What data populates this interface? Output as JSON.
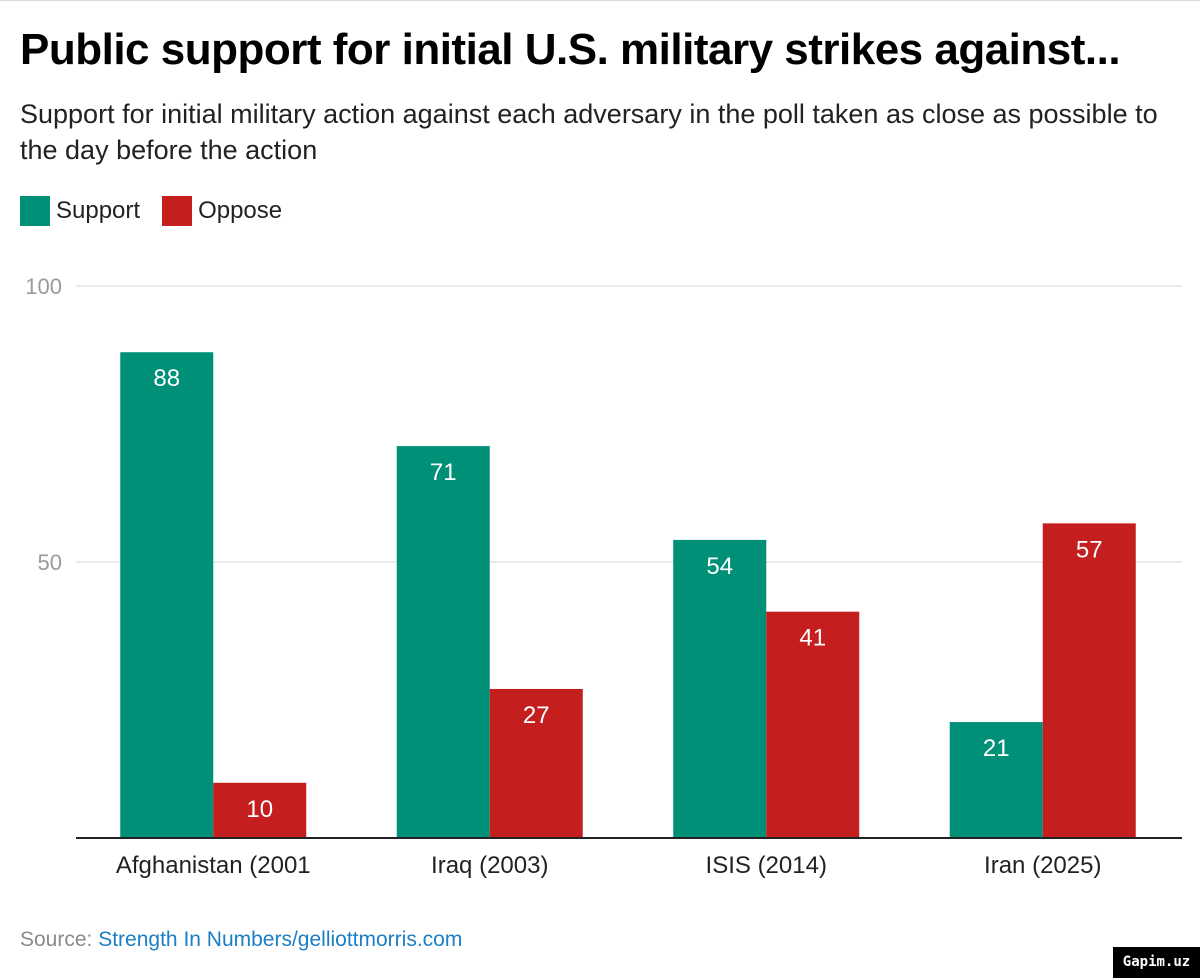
{
  "title": "Public support for initial U.S. military strikes against...",
  "subtitle": "Support for initial military action against each adversary in the poll taken as close as possible to the day before the action",
  "legend": {
    "support_label": "Support",
    "oppose_label": "Oppose"
  },
  "colors": {
    "support": "#008f77",
    "oppose": "#c41e1e",
    "grid": "#e3e3e3",
    "axis": "#222222",
    "tick_label": "#9a9a9a"
  },
  "source": {
    "prefix": "Source: ",
    "link_text": "Strength In Numbers/gelliottmorris.com"
  },
  "watermark": "Gapim.uz",
  "chart_data": {
    "type": "bar",
    "categories": [
      "Afghanistan (2001",
      "Iraq (2003)",
      "ISIS (2014)",
      "Iran (2025)"
    ],
    "series": [
      {
        "name": "Support",
        "values": [
          88,
          71,
          54,
          21
        ]
      },
      {
        "name": "Oppose",
        "values": [
          10,
          27,
          41,
          57
        ]
      }
    ],
    "ylim": [
      0,
      100
    ],
    "yticks": [
      50,
      100
    ],
    "grid": true,
    "legend_position": "top-left",
    "data_labels": true
  }
}
